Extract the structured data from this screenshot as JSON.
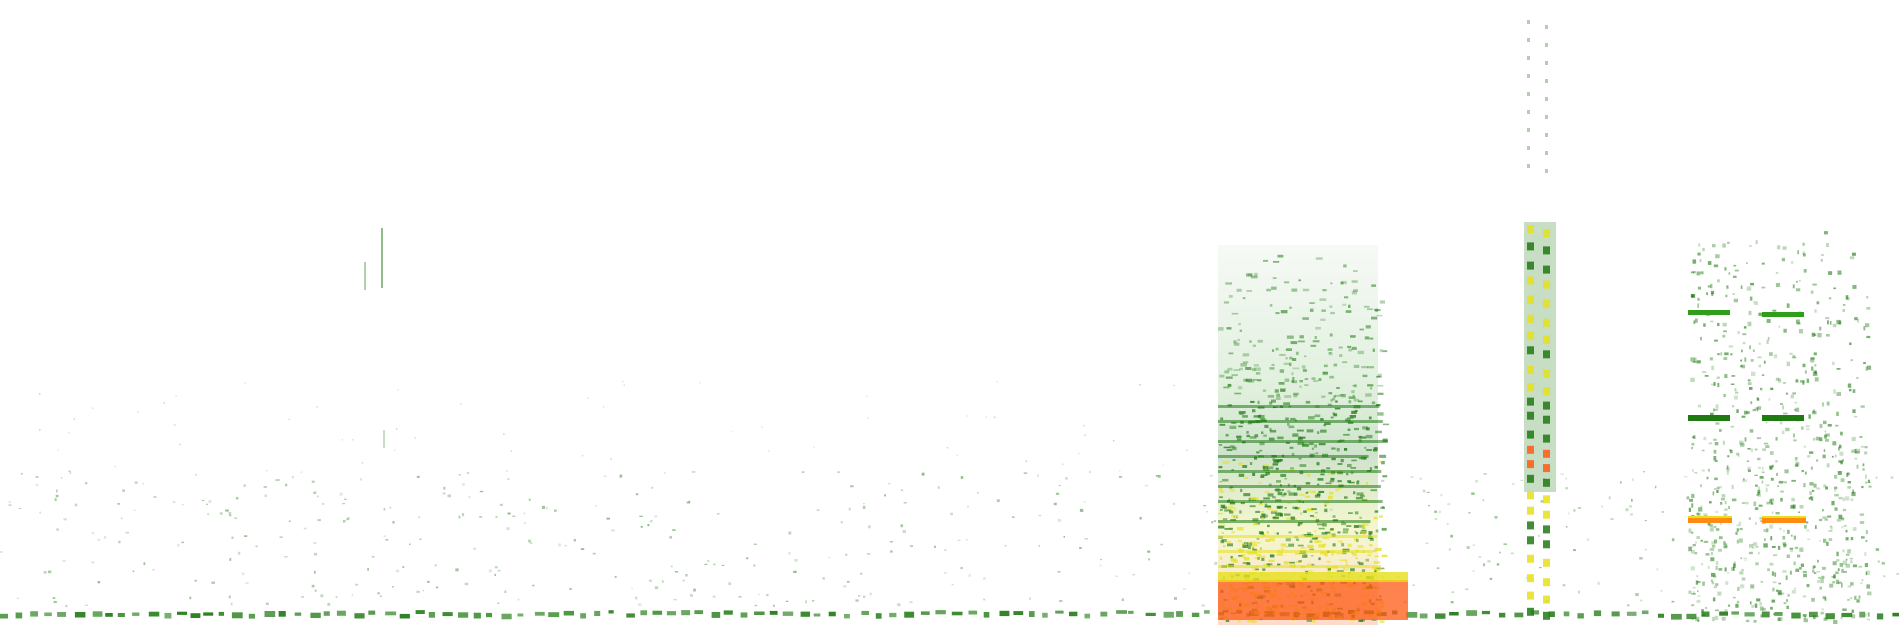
{
  "image": {
    "kind": "spectrogram",
    "background": "#ffffff",
    "palette": {
      "low": "#1f7a12",
      "mid": "#2f9e1a",
      "high": "#e6e01a",
      "peak": "#ff5a14"
    }
  }
}
